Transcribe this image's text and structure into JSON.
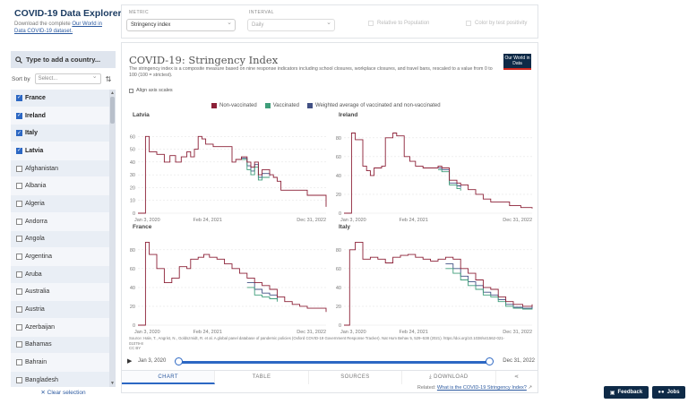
{
  "sidebar": {
    "title": "COVID-19 Data Explorer",
    "desc_prefix": "Download the complete ",
    "desc_link": "Our World in Data COVID-19 dataset.",
    "search_placeholder": "Type to add a country...",
    "sort_label": "Sort by",
    "sort_value": "Select...",
    "countries": [
      {
        "name": "France",
        "checked": true
      },
      {
        "name": "Ireland",
        "checked": true
      },
      {
        "name": "Italy",
        "checked": true
      },
      {
        "name": "Latvia",
        "checked": true
      },
      {
        "name": "Afghanistan",
        "checked": false
      },
      {
        "name": "Albania",
        "checked": false
      },
      {
        "name": "Algeria",
        "checked": false
      },
      {
        "name": "Andorra",
        "checked": false
      },
      {
        "name": "Angola",
        "checked": false
      },
      {
        "name": "Argentina",
        "checked": false
      },
      {
        "name": "Aruba",
        "checked": false
      },
      {
        "name": "Australia",
        "checked": false
      },
      {
        "name": "Austria",
        "checked": false
      },
      {
        "name": "Azerbaijan",
        "checked": false
      },
      {
        "name": "Bahamas",
        "checked": false
      },
      {
        "name": "Bahrain",
        "checked": false
      },
      {
        "name": "Bangladesh",
        "checked": false
      }
    ],
    "clear_label": "✕ Clear selection"
  },
  "controls": {
    "metric_label": "METRIC",
    "metric_value": "Stringency index",
    "interval_label": "INTERVAL",
    "interval_value": "Daily",
    "relative_label": "Relative to Population",
    "positivity_label": "Color by test positivity"
  },
  "chart": {
    "title": "COVID-19: Stringency Index",
    "subtitle": "The stringency index is a composite measure based on nine response indicators including school closures, workplace closures, and travel bans, rescaled to a value from 0 to 100 (100 = strictest).",
    "logo": "Our World in Data",
    "align_label": "Align axis scales",
    "legend": [
      {
        "name": "Non-vaccinated",
        "color": "#8c2037"
      },
      {
        "name": "Vaccinated",
        "color": "#3f9e7a"
      },
      {
        "name": "Weighted average of vaccinated and non-vaccinated",
        "color": "#425184"
      }
    ],
    "source": "Source: Hale, T., Angrist, N., Goldszmidt, R. et al. A global panel database of pandemic policies (Oxford COVID-19 Government Response Tracker). Nat Hum Behav 5, 529–538 (2021). https://doi.org/10.1038/s41562-021-01079-8",
    "license": "CC BY",
    "time_start": "Jan 3, 2020",
    "time_end": "Dec 31, 2022",
    "tabs": [
      "CHART",
      "TABLE",
      "SOURCES",
      "DOWNLOAD"
    ],
    "related_prefix": "Related: ",
    "related_link": "What is the COVID-19 Stringency Index?"
  },
  "chart_data": [
    {
      "type": "line",
      "title": "Latvia",
      "x_ticks": [
        "Jan 3, 2020",
        "Feb 24, 2021",
        "Dec 31, 2022"
      ],
      "ylim": [
        0,
        70
      ],
      "y_ticks": [
        0,
        10,
        20,
        30,
        40,
        50,
        60
      ],
      "series": [
        {
          "name": "Non-vaccinated",
          "x": [
            0,
            0.04,
            0.06,
            0.1,
            0.14,
            0.17,
            0.2,
            0.23,
            0.26,
            0.28,
            0.3,
            0.32,
            0.34,
            0.36,
            0.38,
            0.4,
            0.44,
            0.48,
            0.5,
            0.52,
            0.55,
            0.58,
            0.6,
            0.62,
            0.64,
            0.66,
            0.7,
            0.72,
            0.74,
            0.76,
            0.8,
            0.85,
            0.9,
            0.95,
            1.0
          ],
          "y": [
            0,
            60,
            48,
            46,
            40,
            45,
            40,
            44,
            48,
            44,
            50,
            60,
            58,
            54,
            54,
            52,
            52,
            52,
            40,
            42,
            44,
            40,
            36,
            40,
            30,
            34,
            30,
            28,
            25,
            18,
            18,
            18,
            14,
            14,
            5
          ]
        },
        {
          "name": "Vaccinated",
          "x": [
            0.55,
            0.58,
            0.6,
            0.62,
            0.64,
            0.66,
            0.7
          ],
          "y": [
            42,
            34,
            30,
            36,
            26,
            28,
            28
          ]
        },
        {
          "name": "Weighted average of vaccinated and non-vaccinated",
          "x": [
            0.55,
            0.58,
            0.6,
            0.62,
            0.64,
            0.66,
            0.7
          ],
          "y": [
            43,
            37,
            33,
            38,
            28,
            31,
            29
          ]
        }
      ]
    },
    {
      "type": "line",
      "title": "Ireland",
      "x_ticks": [
        "Jan 3, 2020",
        "Feb 24, 2021",
        "Dec 31, 2022"
      ],
      "ylim": [
        0,
        95
      ],
      "y_ticks": [
        0,
        20,
        40,
        60,
        80
      ],
      "series": [
        {
          "name": "Non-vaccinated",
          "x": [
            0,
            0.04,
            0.06,
            0.1,
            0.12,
            0.14,
            0.16,
            0.2,
            0.22,
            0.26,
            0.28,
            0.32,
            0.35,
            0.38,
            0.42,
            0.46,
            0.5,
            0.52,
            0.56,
            0.6,
            0.62,
            0.66,
            0.7,
            0.74,
            0.78,
            0.82,
            0.88,
            0.94,
            1.0
          ],
          "y": [
            0,
            85,
            78,
            50,
            45,
            40,
            48,
            50,
            80,
            85,
            82,
            60,
            55,
            50,
            48,
            48,
            50,
            48,
            35,
            32,
            30,
            25,
            20,
            15,
            12,
            12,
            8,
            6,
            5
          ]
        },
        {
          "name": "Vaccinated",
          "x": [
            0.5,
            0.52,
            0.56,
            0.6,
            0.62
          ],
          "y": [
            46,
            44,
            30,
            26,
            24
          ]
        },
        {
          "name": "Weighted average of vaccinated and non-vaccinated",
          "x": [
            0.5,
            0.52,
            0.56,
            0.6,
            0.62
          ],
          "y": [
            48,
            46,
            32,
            29,
            27
          ]
        }
      ]
    },
    {
      "type": "line",
      "title": "France",
      "x_ticks": [
        "Jan 3, 2020",
        "Feb 24, 2021",
        "Dec 31, 2022"
      ],
      "ylim": [
        0,
        95
      ],
      "y_ticks": [
        0,
        20,
        40,
        60,
        80
      ],
      "series": [
        {
          "name": "Non-vaccinated",
          "x": [
            0,
            0.04,
            0.06,
            0.1,
            0.14,
            0.18,
            0.22,
            0.26,
            0.28,
            0.32,
            0.35,
            0.38,
            0.42,
            0.46,
            0.5,
            0.54,
            0.58,
            0.62,
            0.66,
            0.7,
            0.74,
            0.78,
            0.82,
            0.86,
            0.9,
            1.0
          ],
          "y": [
            0,
            88,
            75,
            60,
            45,
            50,
            62,
            60,
            70,
            72,
            75,
            72,
            70,
            65,
            60,
            55,
            50,
            45,
            42,
            38,
            30,
            25,
            22,
            20,
            18,
            14
          ]
        },
        {
          "name": "Vaccinated",
          "x": [
            0.58,
            0.62,
            0.66,
            0.7,
            0.74
          ],
          "y": [
            40,
            32,
            30,
            28,
            25
          ]
        },
        {
          "name": "Weighted average of vaccinated and non-vaccinated",
          "x": [
            0.58,
            0.62,
            0.66,
            0.7,
            0.74
          ],
          "y": [
            45,
            38,
            34,
            32,
            27
          ]
        }
      ]
    },
    {
      "type": "line",
      "title": "Italy",
      "x_ticks": [
        "Jan 3, 2020",
        "Feb 24, 2021",
        "Dec 31, 2022"
      ],
      "ylim": [
        0,
        95
      ],
      "y_ticks": [
        0,
        20,
        40,
        60,
        80
      ],
      "series": [
        {
          "name": "Non-vaccinated",
          "x": [
            0,
            0.03,
            0.06,
            0.1,
            0.14,
            0.18,
            0.22,
            0.26,
            0.3,
            0.34,
            0.38,
            0.42,
            0.46,
            0.5,
            0.54,
            0.58,
            0.62,
            0.66,
            0.7,
            0.74,
            0.78,
            0.82,
            0.86,
            0.9,
            0.95,
            1.0
          ],
          "y": [
            0,
            80,
            88,
            70,
            72,
            70,
            66,
            72,
            74,
            75,
            72,
            70,
            68,
            70,
            72,
            70,
            60,
            55,
            48,
            40,
            38,
            30,
            25,
            22,
            20,
            22
          ]
        },
        {
          "name": "Vaccinated",
          "x": [
            0.54,
            0.58,
            0.62,
            0.66,
            0.7,
            0.74,
            0.78,
            0.82,
            0.86,
            0.9,
            0.95,
            1.0
          ],
          "y": [
            60,
            55,
            48,
            42,
            38,
            32,
            30,
            25,
            20,
            18,
            17,
            18
          ]
        },
        {
          "name": "Weighted average of vaccinated and non-vaccinated",
          "x": [
            0.54,
            0.58,
            0.62,
            0.66,
            0.7,
            0.74,
            0.78,
            0.82,
            0.86,
            0.9,
            0.95,
            1.0
          ],
          "y": [
            65,
            60,
            52,
            46,
            42,
            35,
            32,
            27,
            22,
            19,
            18,
            20
          ]
        }
      ]
    }
  ],
  "floating": {
    "feedback": "Feedback",
    "jobs": "Jobs"
  }
}
